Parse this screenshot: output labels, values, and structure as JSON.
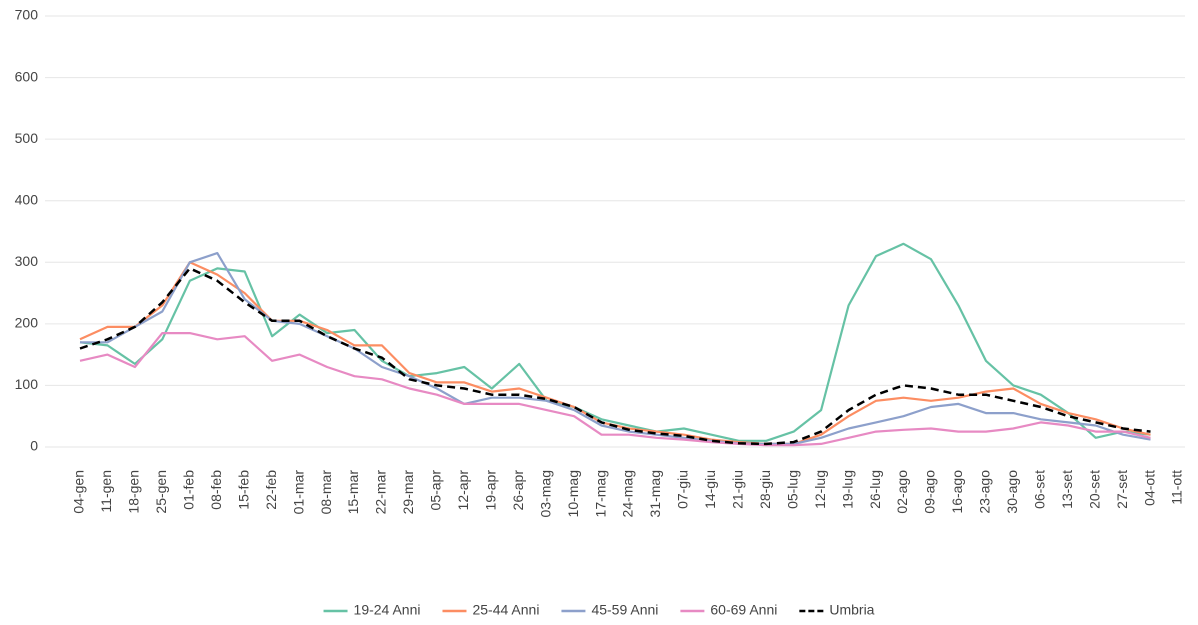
{
  "chart_data": {
    "type": "line",
    "categories": [
      "04-gen",
      "11-gen",
      "18-gen",
      "25-gen",
      "01-feb",
      "08-feb",
      "15-feb",
      "22-feb",
      "01-mar",
      "08-mar",
      "15-mar",
      "22-mar",
      "29-mar",
      "05-apr",
      "12-apr",
      "19-apr",
      "26-apr",
      "03-mag",
      "10-mag",
      "17-mag",
      "24-mag",
      "31-mag",
      "07-giu",
      "14-giu",
      "21-giu",
      "28-giu",
      "05-lug",
      "12-lug",
      "19-lug",
      "26-lug",
      "02-ago",
      "09-ago",
      "16-ago",
      "23-ago",
      "30-ago",
      "06-set",
      "13-set",
      "20-set",
      "27-set",
      "04-ott",
      "11-ott"
    ],
    "series": [
      {
        "name": "19-24 Anni",
        "color": "#66c2a5",
        "values": [
          170,
          165,
          135,
          175,
          270,
          290,
          285,
          180,
          215,
          185,
          190,
          140,
          115,
          120,
          130,
          95,
          135,
          75,
          65,
          45,
          35,
          25,
          30,
          20,
          10,
          10,
          25,
          60,
          230,
          310,
          330,
          305,
          230,
          140,
          100,
          85,
          55,
          15,
          25,
          20,
          null
        ]
      },
      {
        "name": "25-44 Anni",
        "color": "#fc8d62",
        "values": [
          175,
          195,
          195,
          230,
          300,
          280,
          250,
          205,
          205,
          190,
          165,
          165,
          120,
          105,
          105,
          90,
          95,
          80,
          65,
          40,
          30,
          25,
          20,
          12,
          8,
          5,
          5,
          20,
          50,
          75,
          80,
          75,
          80,
          90,
          95,
          70,
          55,
          45,
          30,
          20,
          null
        ]
      },
      {
        "name": "45-59 Anni",
        "color": "#8da0cb",
        "values": [
          170,
          170,
          195,
          220,
          300,
          315,
          240,
          205,
          200,
          180,
          160,
          130,
          115,
          95,
          70,
          80,
          80,
          75,
          60,
          35,
          25,
          20,
          15,
          10,
          6,
          5,
          5,
          15,
          30,
          40,
          50,
          65,
          70,
          55,
          55,
          45,
          40,
          35,
          20,
          12,
          null
        ]
      },
      {
        "name": "60-69 Anni",
        "color": "#e78ac3",
        "values": [
          140,
          150,
          130,
          185,
          185,
          175,
          180,
          140,
          150,
          130,
          115,
          110,
          95,
          85,
          70,
          70,
          70,
          60,
          50,
          20,
          20,
          15,
          12,
          8,
          5,
          3,
          3,
          5,
          15,
          25,
          28,
          30,
          25,
          25,
          30,
          40,
          35,
          25,
          25,
          15,
          null
        ]
      },
      {
        "name": "Umbria",
        "color": "#000000",
        "dashed": true,
        "values": [
          160,
          175,
          195,
          235,
          290,
          270,
          235,
          205,
          205,
          180,
          160,
          145,
          110,
          100,
          95,
          85,
          85,
          78,
          65,
          40,
          28,
          22,
          18,
          10,
          6,
          5,
          8,
          25,
          60,
          85,
          100,
          95,
          85,
          85,
          75,
          65,
          50,
          40,
          30,
          25,
          null
        ]
      }
    ],
    "ylim": [
      -30,
      700
    ],
    "yticks": [
      0,
      100,
      200,
      300,
      400,
      500,
      600,
      700
    ],
    "grid": true,
    "legend": "bottom"
  }
}
